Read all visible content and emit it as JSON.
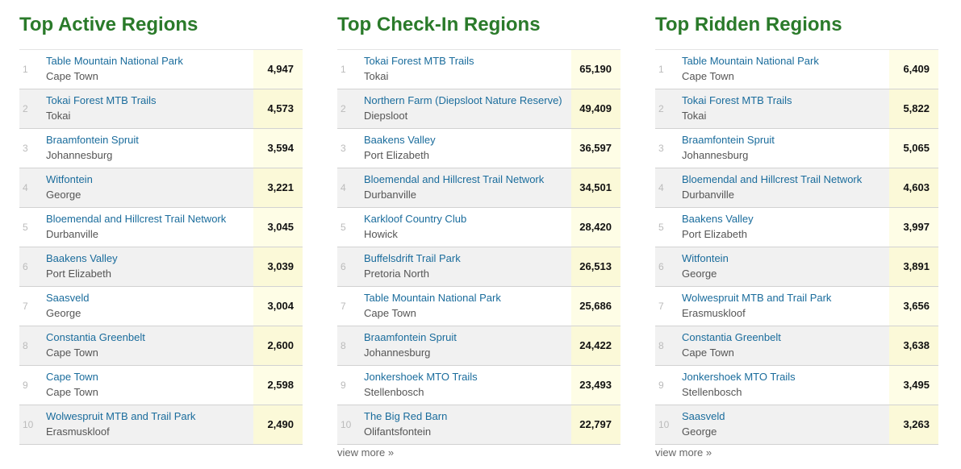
{
  "panels": [
    {
      "title": "Top Active Regions",
      "rows": [
        {
          "rank": "1",
          "name": "Table Mountain National Park",
          "location": "Cape Town",
          "value": "4,947"
        },
        {
          "rank": "2",
          "name": "Tokai Forest MTB Trails",
          "location": "Tokai",
          "value": "4,573"
        },
        {
          "rank": "3",
          "name": "Braamfontein Spruit",
          "location": "Johannesburg",
          "value": "3,594"
        },
        {
          "rank": "4",
          "name": "Witfontein",
          "location": "George",
          "value": "3,221"
        },
        {
          "rank": "5",
          "name": "Bloemendal and Hillcrest Trail Network",
          "location": "Durbanville",
          "value": "3,045"
        },
        {
          "rank": "6",
          "name": "Baakens Valley",
          "location": "Port Elizabeth",
          "value": "3,039"
        },
        {
          "rank": "7",
          "name": "Saasveld",
          "location": "George",
          "value": "3,004"
        },
        {
          "rank": "8",
          "name": "Constantia Greenbelt",
          "location": "Cape Town",
          "value": "2,600"
        },
        {
          "rank": "9",
          "name": "Cape Town",
          "location": "Cape Town",
          "value": "2,598"
        },
        {
          "rank": "10",
          "name": "Wolwespruit MTB and Trail Park",
          "location": "Erasmuskloof",
          "value": "2,490"
        }
      ]
    },
    {
      "title": "Top Check-In Regions",
      "rows": [
        {
          "rank": "1",
          "name": "Tokai Forest MTB Trails",
          "location": "Tokai",
          "value": "65,190"
        },
        {
          "rank": "2",
          "name": "Northern Farm (Diepsloot Nature Reserve)",
          "location": "Diepsloot",
          "value": "49,409"
        },
        {
          "rank": "3",
          "name": "Baakens Valley",
          "location": "Port Elizabeth",
          "value": "36,597"
        },
        {
          "rank": "4",
          "name": "Bloemendal and Hillcrest Trail Network",
          "location": "Durbanville",
          "value": "34,501"
        },
        {
          "rank": "5",
          "name": "Karkloof Country Club",
          "location": "Howick",
          "value": "28,420"
        },
        {
          "rank": "6",
          "name": "Buffelsdrift Trail Park",
          "location": "Pretoria North",
          "value": "26,513"
        },
        {
          "rank": "7",
          "name": "Table Mountain National Park",
          "location": "Cape Town",
          "value": "25,686"
        },
        {
          "rank": "8",
          "name": "Braamfontein Spruit",
          "location": "Johannesburg",
          "value": "24,422"
        },
        {
          "rank": "9",
          "name": "Jonkershoek MTO Trails",
          "location": "Stellenbosch",
          "value": "23,493"
        },
        {
          "rank": "10",
          "name": "The Big Red Barn",
          "location": "Olifantsfontein",
          "value": "22,797"
        }
      ],
      "view_more": "view more »"
    },
    {
      "title": "Top Ridden Regions",
      "rows": [
        {
          "rank": "1",
          "name": "Table Mountain National Park",
          "location": "Cape Town",
          "value": "6,409"
        },
        {
          "rank": "2",
          "name": "Tokai Forest MTB Trails",
          "location": "Tokai",
          "value": "5,822"
        },
        {
          "rank": "3",
          "name": "Braamfontein Spruit",
          "location": "Johannesburg",
          "value": "5,065"
        },
        {
          "rank": "4",
          "name": "Bloemendal and Hillcrest Trail Network",
          "location": "Durbanville",
          "value": "4,603"
        },
        {
          "rank": "5",
          "name": "Baakens Valley",
          "location": "Port Elizabeth",
          "value": "3,997"
        },
        {
          "rank": "6",
          "name": "Witfontein",
          "location": "George",
          "value": "3,891"
        },
        {
          "rank": "7",
          "name": "Wolwespruit MTB and Trail Park",
          "location": "Erasmuskloof",
          "value": "3,656"
        },
        {
          "rank": "8",
          "name": "Constantia Greenbelt",
          "location": "Cape Town",
          "value": "3,638"
        },
        {
          "rank": "9",
          "name": "Jonkershoek MTO Trails",
          "location": "Stellenbosch",
          "value": "3,495"
        },
        {
          "rank": "10",
          "name": "Saasveld",
          "location": "George",
          "value": "3,263"
        }
      ],
      "view_more": "view more »"
    }
  ],
  "colors": {
    "title_green": "#2a7a2a",
    "link_blue": "#1a6c9c",
    "value_bg": "#fefde6",
    "alt_row_bg": "#f1f1f1"
  }
}
